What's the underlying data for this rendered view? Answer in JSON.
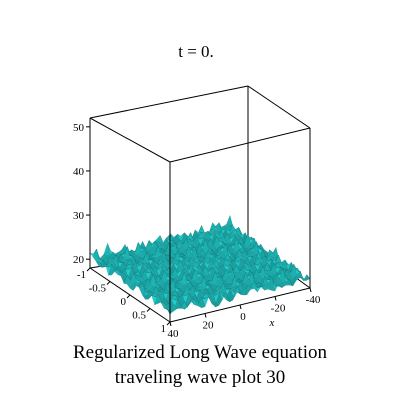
{
  "chart_data": {
    "type": "surface3d",
    "title": "t = 0.",
    "caption_line1": "Regularized Long Wave equation",
    "caption_line2": "traveling wave plot 30",
    "xlabel": "x",
    "ylabel": "",
    "zlabel": "",
    "x_range": [
      -40,
      40
    ],
    "y_range": [
      -1,
      1
    ],
    "z_range": [
      18,
      52
    ],
    "x_ticks": [
      "40",
      "20",
      "0",
      "-20",
      "-40"
    ],
    "y_ticks": [
      "-1",
      "-0.5",
      "0",
      "0.5",
      "1"
    ],
    "z_ticks": [
      "50",
      "40",
      "30",
      "20"
    ],
    "surface_color": "#22d3d3",
    "mesh_color": "#0a5a5a",
    "box_color": "#000000",
    "surface_level": 20
  }
}
